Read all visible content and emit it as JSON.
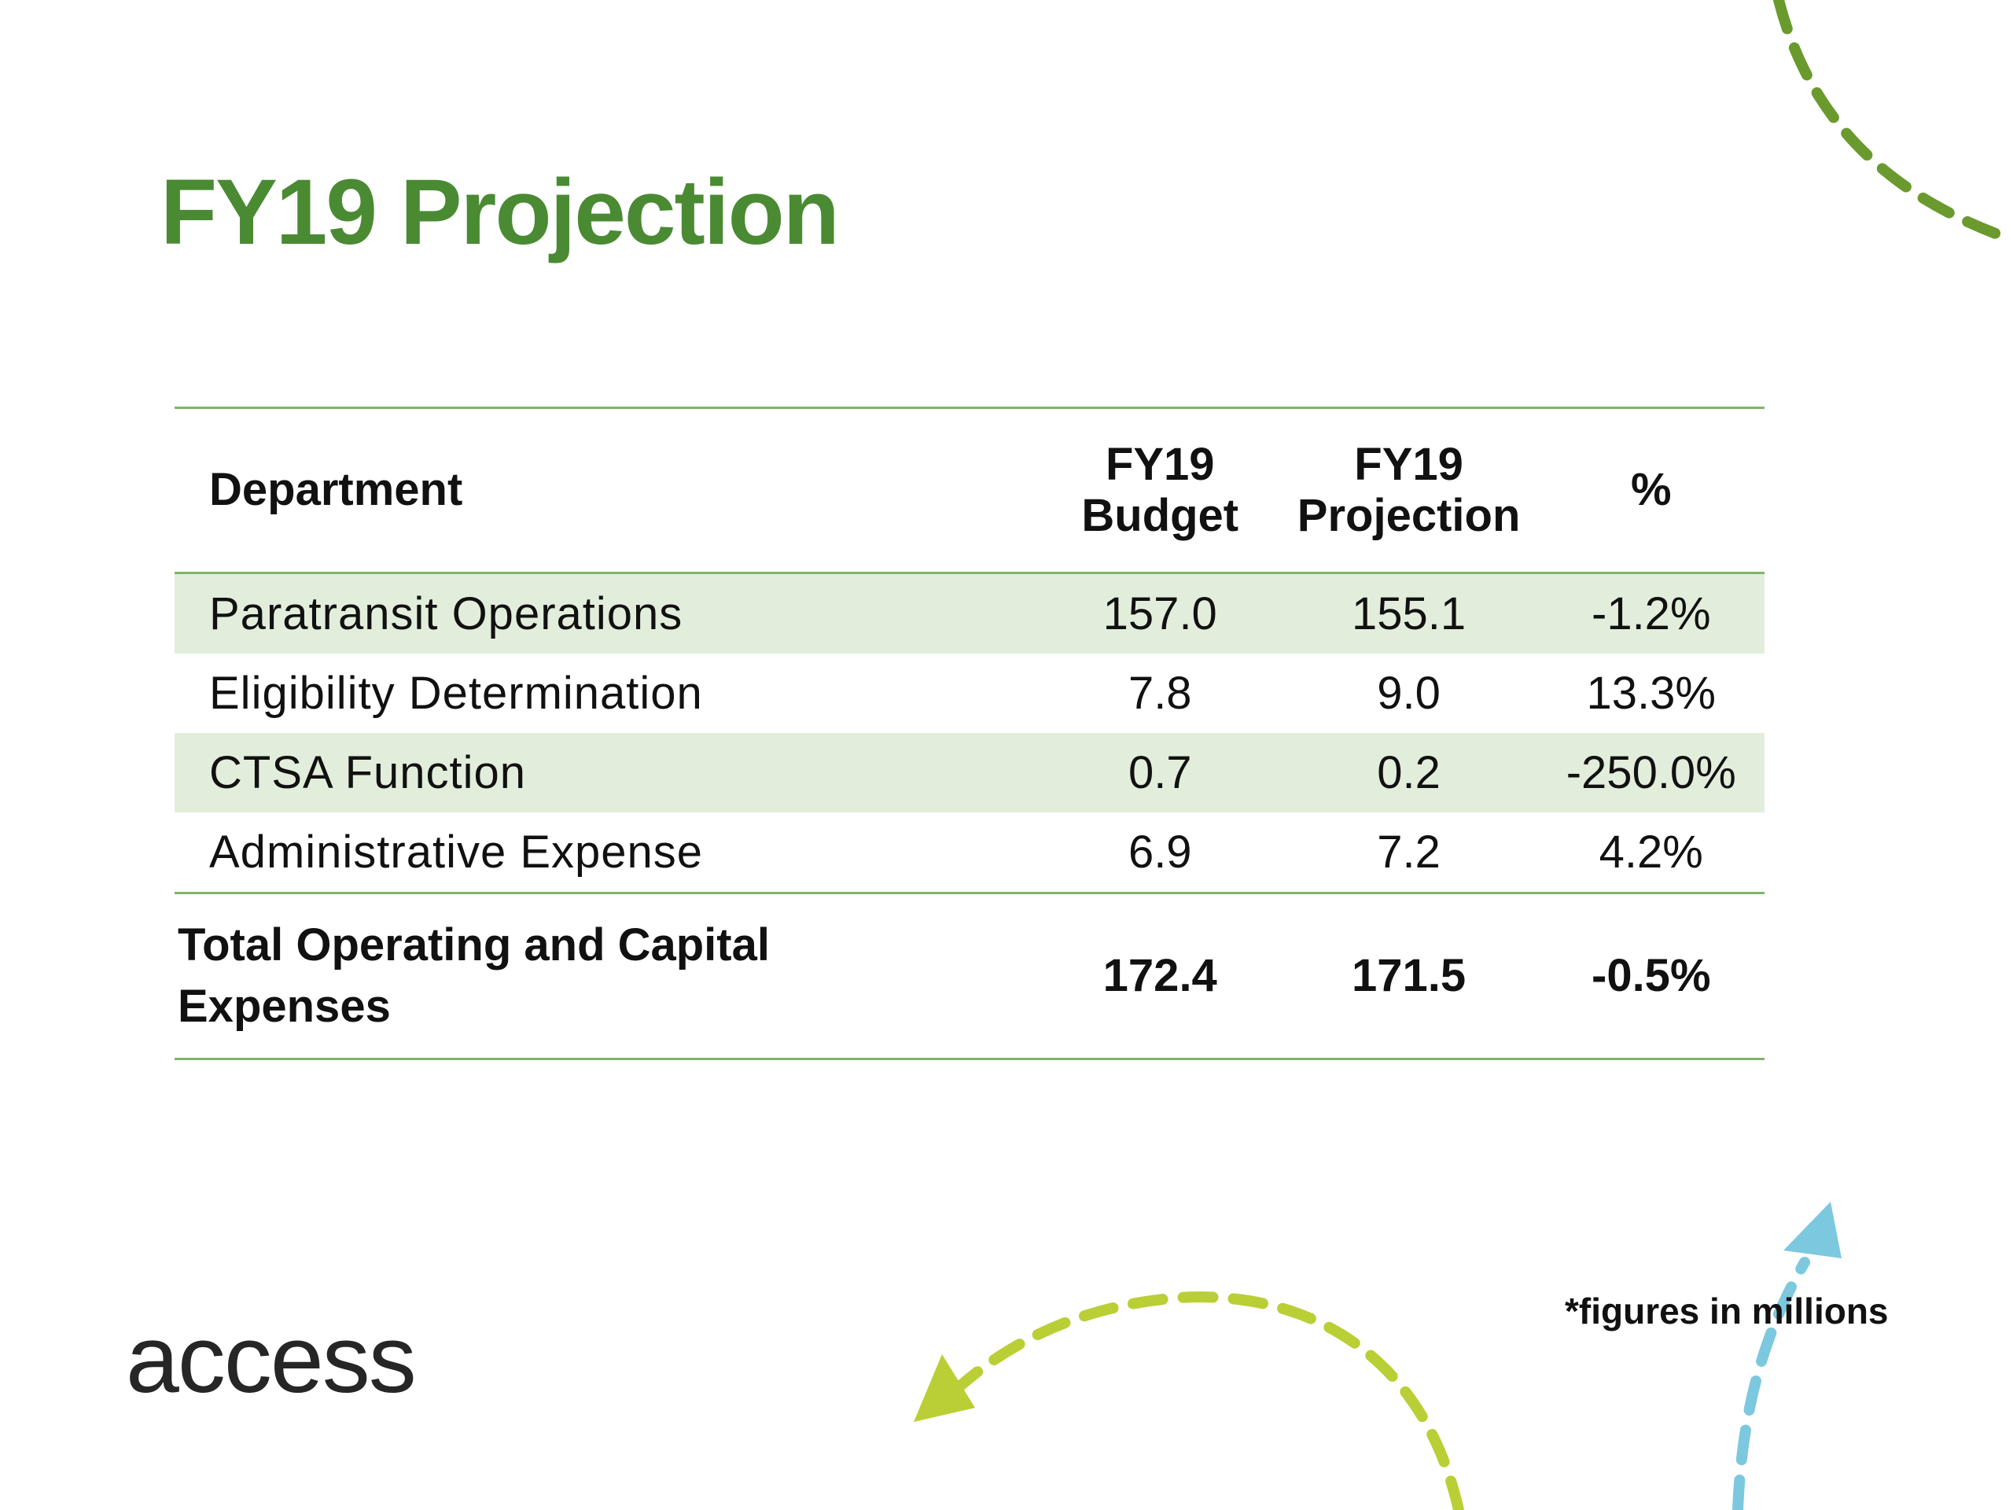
{
  "slide": {
    "title": "FY19 Projection",
    "logo_text": "access",
    "footnote": "*figures in millions",
    "colors": {
      "title_green": "#4a8a33",
      "rule_green": "#7fb46a",
      "row_shade": "#e2eedb",
      "arrow_olive": "#6a9a2e",
      "arrow_lime": "#b9cf35",
      "arrow_blue": "#7cc8df"
    }
  },
  "table": {
    "headers": {
      "department": "Department",
      "budget_line1": "FY19",
      "budget_line2": "Budget",
      "projection_line1": "FY19",
      "projection_line2": "Projection",
      "percent": "%"
    },
    "rows": [
      {
        "department": "Paratransit Operations",
        "budget": "157.0",
        "projection": "155.1",
        "percent": "-1.2%"
      },
      {
        "department": "Eligibility Determination",
        "budget": "7.8",
        "projection": "9.0",
        "percent": "13.3%"
      },
      {
        "department": "CTSA Function",
        "budget": "0.7",
        "projection": "0.2",
        "percent": "-250.0%"
      },
      {
        "department": "Administrative Expense",
        "budget": "6.9",
        "projection": "7.2",
        "percent": "4.2%"
      }
    ],
    "total": {
      "department_line1": "Total Operating and Capital",
      "department_line2": "Expenses",
      "budget": "172.4",
      "projection": "171.5",
      "percent": "-0.5%"
    }
  }
}
